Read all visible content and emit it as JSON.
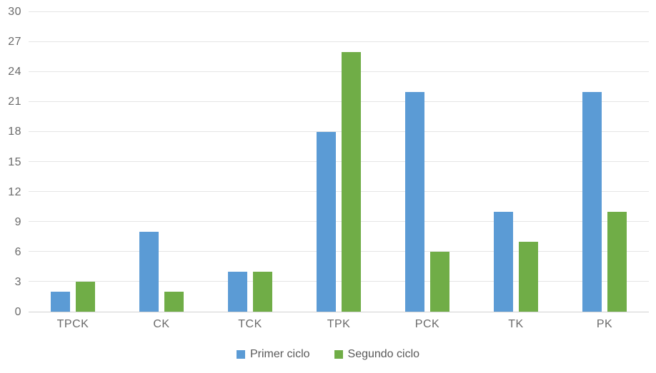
{
  "chart_data": {
    "type": "bar",
    "title": "",
    "xlabel": "",
    "ylabel": "",
    "categories": [
      "TPCK",
      "CK",
      "TCK",
      "TPK",
      "PCK",
      "TK",
      "PK"
    ],
    "series": [
      {
        "name": "Primer ciclo",
        "color": "#5B9BD5",
        "values": [
          2,
          8,
          4,
          18,
          22,
          10,
          22
        ]
      },
      {
        "name": "Segundo ciclo",
        "color": "#70AD47",
        "values": [
          3,
          2,
          4,
          26,
          6,
          7,
          10
        ]
      }
    ],
    "ylim": [
      0,
      30
    ],
    "yticks": [
      0,
      3,
      6,
      9,
      12,
      15,
      18,
      21,
      24,
      27,
      30
    ],
    "grid": true,
    "legend_position": "bottom"
  },
  "colors": {
    "gridline": "#e5e5e5",
    "axis_line": "#d2d2d2",
    "tick_label": "#6a6a6a",
    "legend_label": "#595959"
  }
}
